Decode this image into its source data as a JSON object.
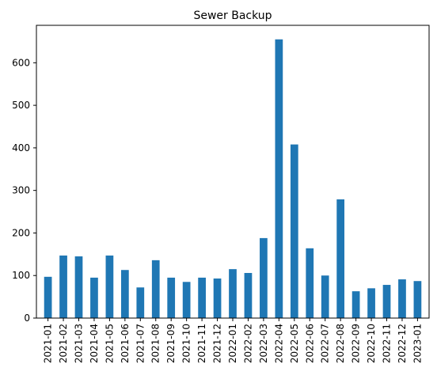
{
  "chart_data": {
    "type": "bar",
    "title": "Sewer Backup",
    "xlabel": "",
    "ylabel": "",
    "categories": [
      "2021-01",
      "2021-02",
      "2021-03",
      "2021-04",
      "2021-05",
      "2021-06",
      "2021-07",
      "2021-08",
      "2021-09",
      "2021-10",
      "2021-11",
      "2021-12",
      "2022-01",
      "2022-02",
      "2022-03",
      "2022-04",
      "2022-05",
      "2022-06",
      "2022-07",
      "2022-08",
      "2022-09",
      "2022-10",
      "2022-11",
      "2022-12",
      "2023-01"
    ],
    "values": [
      97,
      147,
      145,
      95,
      147,
      113,
      72,
      136,
      95,
      85,
      95,
      93,
      115,
      106,
      188,
      655,
      408,
      164,
      100,
      279,
      63,
      70,
      78,
      91,
      87
    ],
    "ylim": [
      0,
      688
    ],
    "yticks": [
      0,
      100,
      200,
      300,
      400,
      500,
      600
    ],
    "grid": false,
    "legend": "none",
    "bar_color": "#1f77b4"
  }
}
